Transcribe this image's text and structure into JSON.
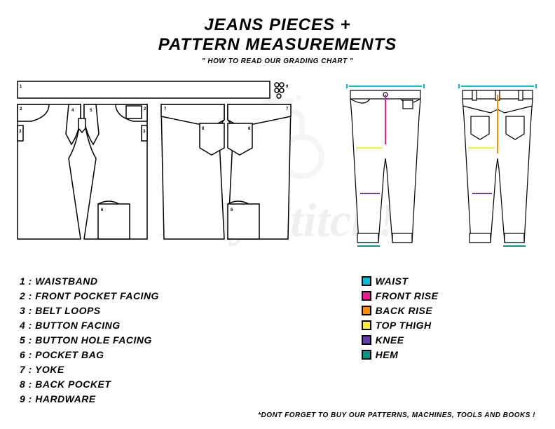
{
  "header": {
    "title": "JEANS PIECES +",
    "subtitle": "PATTERN MEASUREMENTS",
    "tagline": "\" HOW TO READ OUR GRADING CHART \""
  },
  "pieces": [
    {
      "num": "1",
      "label": "WAISTBAND"
    },
    {
      "num": "2",
      "label": "FRONT POCKET FACING"
    },
    {
      "num": "3",
      "label": "BELT LOOPS"
    },
    {
      "num": "4",
      "label": "BUTTON FACING"
    },
    {
      "num": "5",
      "label": "BUTTON HOLE FACING"
    },
    {
      "num": "6",
      "label": "POCKET BAG"
    },
    {
      "num": "7",
      "label": "YOKE"
    },
    {
      "num": "8",
      "label": "BACK POCKET"
    },
    {
      "num": "9",
      "label": "HARDWARE"
    }
  ],
  "measurements": [
    {
      "color": "#00bcd4",
      "label": "WAIST"
    },
    {
      "color": "#e91e8e",
      "label": "FRONT RISE"
    },
    {
      "color": "#ff8c00",
      "label": "BACK RISE"
    },
    {
      "color": "#ffeb3b",
      "label": "TOP THIGH"
    },
    {
      "color": "#673ab7",
      "label": "KNEE"
    },
    {
      "color": "#009688",
      "label": "HEM"
    }
  ],
  "footer": "*DONT FORGET TO BUY OUR PATTERNS, MACHINES, TOOLS AND BOOKS !",
  "watermark": "Holy $titch!",
  "colors": {
    "line": "#000000",
    "bg": "#ffffff",
    "watermark": "#e0e0e0"
  }
}
